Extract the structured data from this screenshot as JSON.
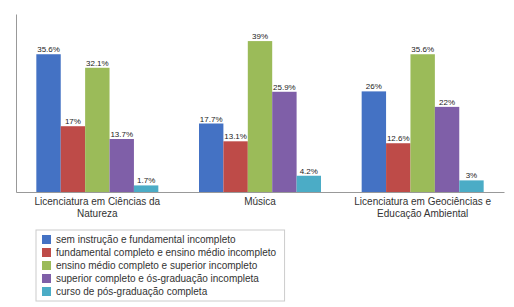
{
  "chart_data": {
    "type": "bar",
    "categories": [
      "Licenciatura em Ciências da\nNatureza",
      "Música",
      "Licenciatura em Geociências e\nEducação Ambiental"
    ],
    "series": [
      {
        "name": "sem instrução e fundamental incompleto",
        "color": "#4472C4",
        "values": [
          35.6,
          17.7,
          26.0
        ],
        "value_labels": [
          "35.6%",
          "17.7%",
          "26%"
        ]
      },
      {
        "name": "fundamental completo e ensino médio incompleto",
        "color": "#BE4B48",
        "values": [
          17.0,
          13.1,
          12.6
        ],
        "value_labels": [
          "17%",
          "13.1%",
          "12.6%"
        ]
      },
      {
        "name": "ensino médio completo e superior incompleto",
        "color": "#9BBB59",
        "values": [
          32.1,
          39.0,
          35.6
        ],
        "value_labels": [
          "32.1%",
          "39%",
          "35.6%"
        ]
      },
      {
        "name": "superior completo e ós-graduação incompleta",
        "color": "#7F5FA8",
        "values": [
          13.7,
          25.9,
          22.0
        ],
        "value_labels": [
          "13.7%",
          "25.9%",
          "22%"
        ]
      },
      {
        "name": "curso de pós-graduação completa",
        "color": "#4BACC6",
        "values": [
          1.7,
          4.2,
          3.0
        ],
        "value_labels": [
          "1.7%",
          "4.2%",
          "3%"
        ]
      }
    ],
    "ylim": [
      0,
      46
    ],
    "data_labels": true,
    "tick_labels": "x",
    "grid": false,
    "legend": "bottom"
  }
}
